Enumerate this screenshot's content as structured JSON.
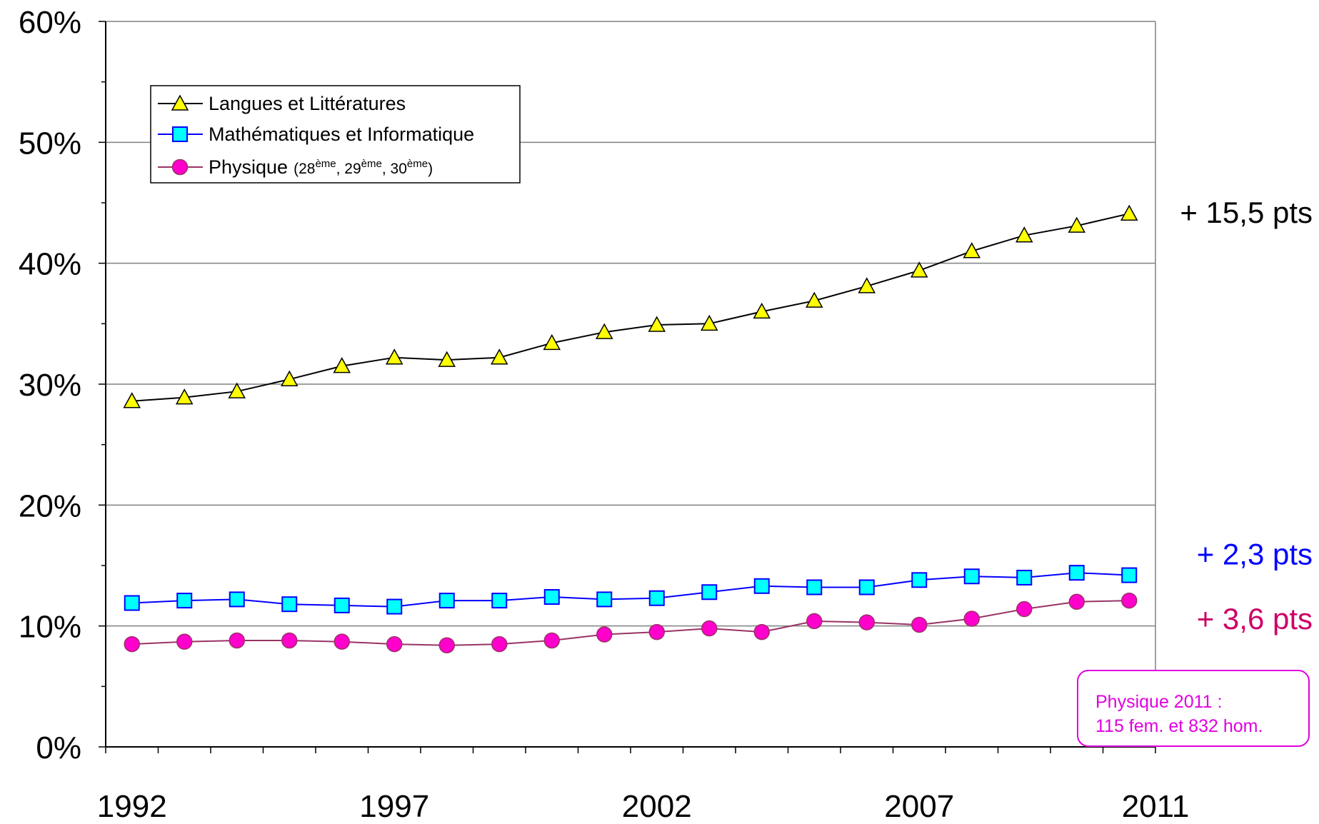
{
  "chart_data": {
    "type": "line",
    "x": [
      1992,
      1993,
      1994,
      1995,
      1996,
      1997,
      1998,
      1999,
      2000,
      2001,
      2002,
      2003,
      2004,
      2005,
      2006,
      2007,
      2008,
      2009,
      2010,
      2011
    ],
    "x_tick_labels": [
      "1992",
      "1997",
      "2002",
      "2007",
      "2011"
    ],
    "x_tick_label_years": [
      1992,
      1997,
      2002,
      2007,
      2011
    ],
    "ylim": [
      0,
      60
    ],
    "y_tick_labels": [
      "0%",
      "10%",
      "20%",
      "30%",
      "40%",
      "50%",
      "60%"
    ],
    "grid": "horizontal major lines",
    "legend_position": "top-left",
    "series": [
      {
        "name": "Langues et Littératures",
        "color": "#000000",
        "marker": "triangle",
        "marker_fill": "#ffff00",
        "values": [
          28.6,
          28.9,
          29.4,
          30.4,
          31.5,
          32.2,
          32.0,
          32.2,
          33.4,
          34.3,
          34.9,
          35.0,
          36.0,
          36.9,
          38.1,
          39.4,
          41.0,
          42.3,
          43.1,
          44.1
        ],
        "end_label": "+ 15,5 pts",
        "end_label_color": "#000000"
      },
      {
        "name": "Mathématiques et Informatique",
        "color": "#0000ff",
        "marker": "square",
        "marker_fill": "#00ffff",
        "values": [
          11.9,
          12.1,
          12.2,
          11.8,
          11.7,
          11.6,
          12.1,
          12.1,
          12.4,
          12.2,
          12.3,
          12.8,
          13.3,
          13.2,
          13.2,
          13.8,
          14.1,
          14.0,
          14.4,
          14.2
        ],
        "end_label": "+ 2,3 pts",
        "end_label_color": "#0000ff"
      },
      {
        "name": "Physique",
        "name_detail": [
          "(28",
          "ème",
          ", 29",
          "ème",
          ", 30",
          "ème",
          ")"
        ],
        "color": "#993366",
        "marker": "circle",
        "marker_fill": "#ff00cc",
        "values": [
          8.5,
          8.7,
          8.8,
          8.8,
          8.7,
          8.5,
          8.4,
          8.5,
          8.8,
          9.3,
          9.5,
          9.8,
          9.5,
          10.4,
          10.3,
          10.1,
          10.6,
          11.4,
          12.0,
          12.1
        ],
        "end_label": "+ 3,6 pts",
        "end_label_color": "#cc0066"
      }
    ],
    "annotation": {
      "line1": "Physique 2011 :",
      "line2": "115 fem. et 832 hom.",
      "color": "#e000e0"
    }
  }
}
